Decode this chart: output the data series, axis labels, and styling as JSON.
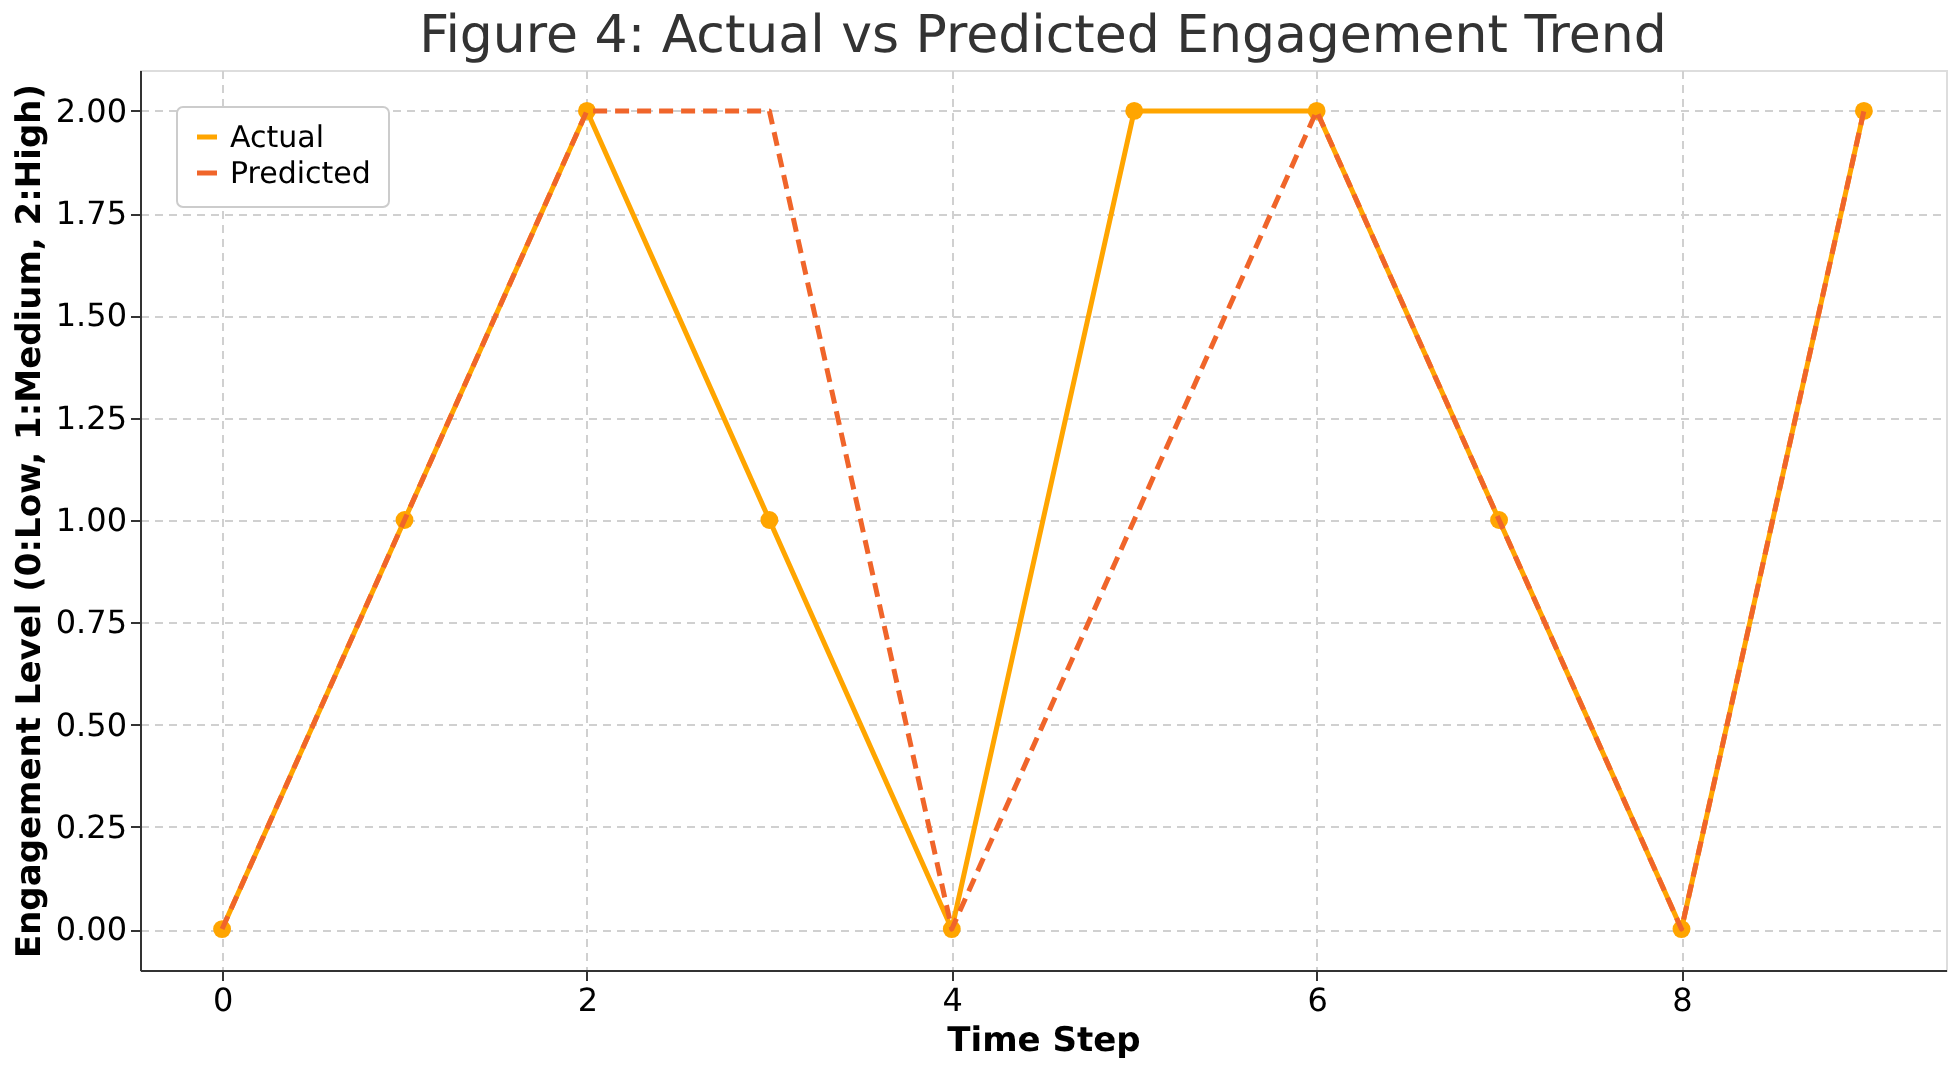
{
  "chart_data": {
    "type": "line",
    "title": "Figure 4: Actual vs Predicted Engagement Trend",
    "xlabel": "Time Step",
    "ylabel": "Engagement Level (0:Low, 1:Medium, 2:High)",
    "x": [
      0,
      1,
      2,
      3,
      4,
      5,
      6,
      7,
      8,
      9
    ],
    "series": [
      {
        "name": "Actual",
        "color": "#ffa500",
        "values": [
          0,
          1,
          2,
          1,
          0,
          2,
          2,
          1,
          0,
          2
        ],
        "marker": "circle",
        "line_style": "solid"
      },
      {
        "name": "Predicted",
        "color": "#f0652a",
        "values": [
          0,
          1,
          2,
          2,
          0,
          1,
          2,
          1,
          0,
          2
        ],
        "marker": "none",
        "line_style": "dashed"
      }
    ],
    "xlim": [
      -0.45,
      9.45
    ],
    "xticks": [
      0,
      2,
      4,
      6,
      8
    ],
    "ylim": [
      -0.1,
      2.1
    ],
    "yticks": [
      {
        "value": 0,
        "label": "0.00"
      },
      0.25,
      {
        "value": 0.5,
        "label": "0.50"
      },
      0.75,
      {
        "value": 1,
        "label": "1.00"
      },
      1.25,
      {
        "value": 1.5,
        "label": "1.50"
      },
      1.75,
      {
        "value": 2,
        "label": "2.00"
      }
    ],
    "grid": true,
    "legend": "top left"
  }
}
